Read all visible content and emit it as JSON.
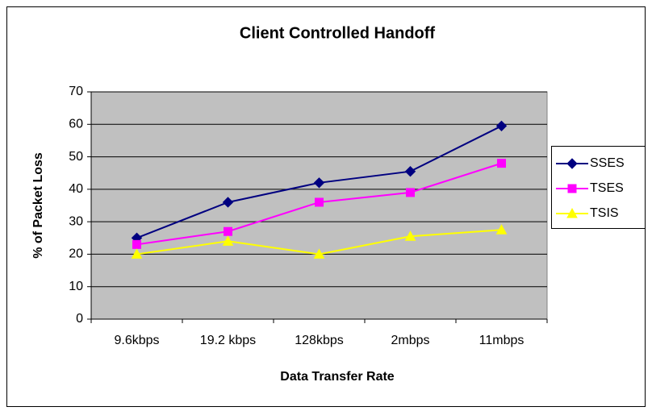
{
  "chart_data": {
    "type": "line",
    "title": "Client Controlled Handoff",
    "x_label": "Data Transfer Rate",
    "y_label": "% of Packet Loss",
    "categories": [
      "9.6kbps",
      "19.2 kbps",
      "128kbps",
      "2mbps",
      "11mbps"
    ],
    "series": [
      {
        "name": "SSES",
        "color": "#000080",
        "marker": "diamond",
        "values": [
          25,
          36,
          42,
          45.5,
          59.5
        ]
      },
      {
        "name": "TSES",
        "color": "#ff00ff",
        "marker": "square",
        "values": [
          23,
          27,
          36,
          39,
          48
        ]
      },
      {
        "name": "TSIS",
        "color": "#ffff00",
        "marker": "triangle",
        "values": [
          20,
          24,
          20,
          25.5,
          27.5
        ]
      }
    ],
    "ylim": [
      0,
      70
    ],
    "yticks": [
      0,
      10,
      20,
      30,
      40,
      50,
      60,
      70
    ],
    "grid": true,
    "legend": "right"
  }
}
